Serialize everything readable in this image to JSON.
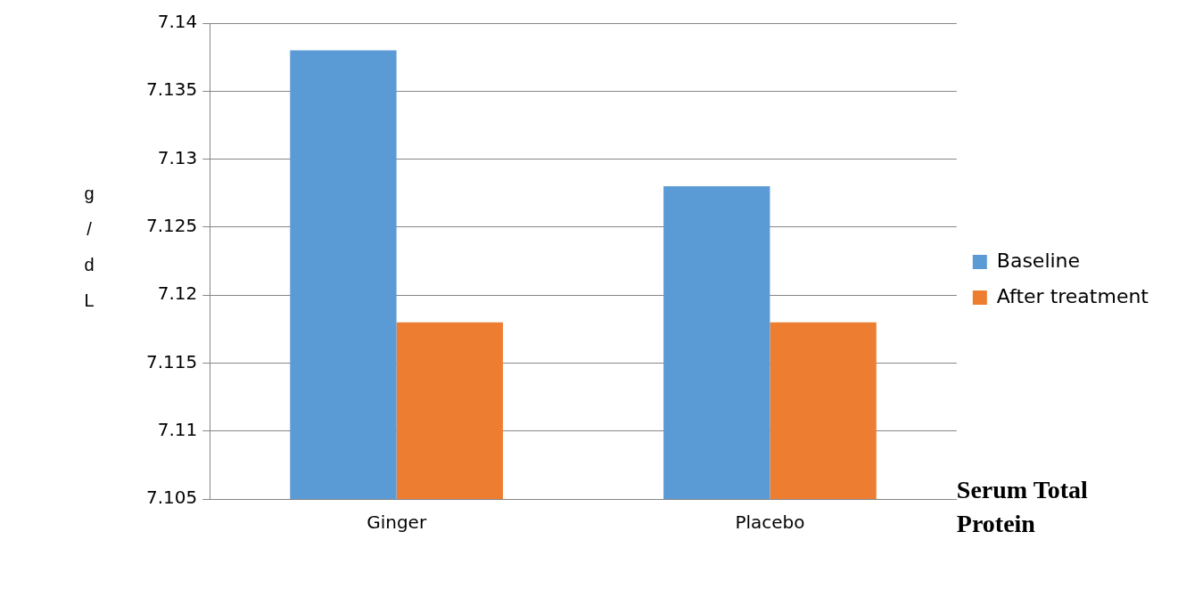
{
  "chart_data": {
    "type": "bar",
    "xlabel": "Serum Total Protein",
    "ylabel": "g/dL",
    "categories": [
      "Ginger",
      "Placebo"
    ],
    "series": [
      {
        "name": "Baseline",
        "color": "#5b9bd5",
        "values": [
          7.138,
          7.128
        ]
      },
      {
        "name": "After treatment",
        "color": "#ed7d31",
        "values": [
          7.118,
          7.118
        ]
      }
    ],
    "ylim": [
      7.105,
      7.14
    ],
    "yticks": [
      7.105,
      7.11,
      7.115,
      7.12,
      7.125,
      7.13,
      7.135,
      7.14
    ],
    "grid": "y",
    "legend": "right"
  }
}
